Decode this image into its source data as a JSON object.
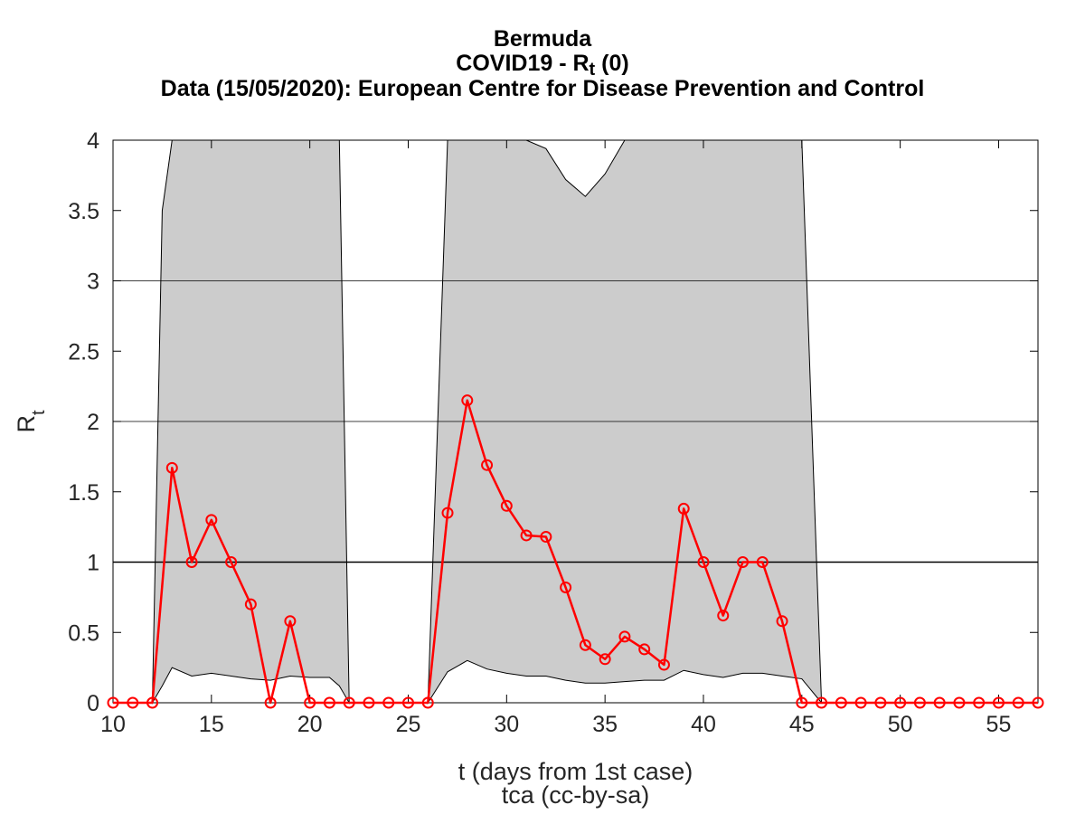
{
  "title": {
    "line1": "Bermuda",
    "line2_prefix": "COVID19 - R",
    "line2_sub": "t",
    "line2_suffix": " (0)",
    "line3": "Data (15/05/2020): European Centre for Disease Prevention and Control"
  },
  "chart_data": {
    "type": "line",
    "xlabel": "t (days from 1st case)",
    "credit": "tca (cc-by-sa)",
    "ylabel_main": "R",
    "ylabel_sub": "t",
    "xlim": [
      10,
      57
    ],
    "ylim": [
      0,
      4
    ],
    "xticks": [
      10,
      15,
      20,
      25,
      30,
      35,
      40,
      45,
      50,
      55
    ],
    "yticks": [
      0,
      0.5,
      1,
      1.5,
      2,
      2.5,
      3,
      3.5,
      4
    ],
    "ytick_labels": [
      "0",
      "0.5",
      "1",
      "1.5",
      "2",
      "2.5",
      "3",
      "3.5",
      "4"
    ],
    "grid_y": [
      2,
      3
    ],
    "reference_line_y": 1,
    "series_color": "#ff0000",
    "band_color": "#cccccc",
    "series": [
      {
        "x": [
          10,
          11,
          12,
          13,
          14,
          15,
          16,
          17,
          18,
          19,
          20,
          21,
          22,
          23,
          24,
          25,
          26,
          27,
          28,
          29,
          30,
          31,
          32,
          33,
          34,
          35,
          36,
          37,
          38,
          39,
          40,
          41,
          42,
          43,
          44,
          45,
          46,
          47,
          48,
          49,
          50,
          51,
          52,
          53,
          54,
          55,
          56,
          57
        ],
        "values": [
          0,
          0,
          0,
          1.67,
          1.0,
          1.3,
          1.0,
          0.7,
          0,
          0.58,
          0,
          0,
          0,
          0,
          0,
          0,
          0,
          1.35,
          2.15,
          1.69,
          1.4,
          1.19,
          1.18,
          0.82,
          0.41,
          0.31,
          0.47,
          0.38,
          0.27,
          1.38,
          1.0,
          0.62,
          1.0,
          1.0,
          0.58,
          0,
          0,
          0,
          0,
          0,
          0,
          0,
          0,
          0,
          0,
          0,
          0,
          0
        ]
      }
    ],
    "confidence_band": [
      {
        "x": [
          12,
          12.5,
          13,
          14,
          15,
          16,
          17,
          18,
          19,
          20,
          21,
          21.5,
          22
        ],
        "lower": [
          0,
          0.12,
          0.25,
          0.19,
          0.21,
          0.19,
          0.17,
          0.16,
          0.19,
          0.18,
          0.18,
          0.12,
          0
        ],
        "upper": [
          0,
          3.5,
          4,
          4,
          4,
          4,
          4,
          4,
          4,
          4,
          4,
          4,
          0
        ]
      },
      {
        "x": [
          26,
          27,
          28,
          29,
          30,
          31,
          32,
          33,
          34,
          35,
          36,
          37,
          38,
          39,
          40,
          41,
          42,
          43,
          44,
          45,
          46
        ],
        "lower": [
          0,
          0.22,
          0.3,
          0.24,
          0.21,
          0.19,
          0.19,
          0.16,
          0.14,
          0.14,
          0.15,
          0.16,
          0.16,
          0.23,
          0.2,
          0.18,
          0.21,
          0.21,
          0.19,
          0.17,
          0
        ],
        "upper": [
          0,
          4,
          4,
          4,
          4,
          4,
          3.94,
          3.72,
          3.6,
          3.76,
          4,
          4,
          4,
          4,
          4,
          4,
          4,
          4,
          4,
          4,
          0
        ]
      }
    ]
  }
}
